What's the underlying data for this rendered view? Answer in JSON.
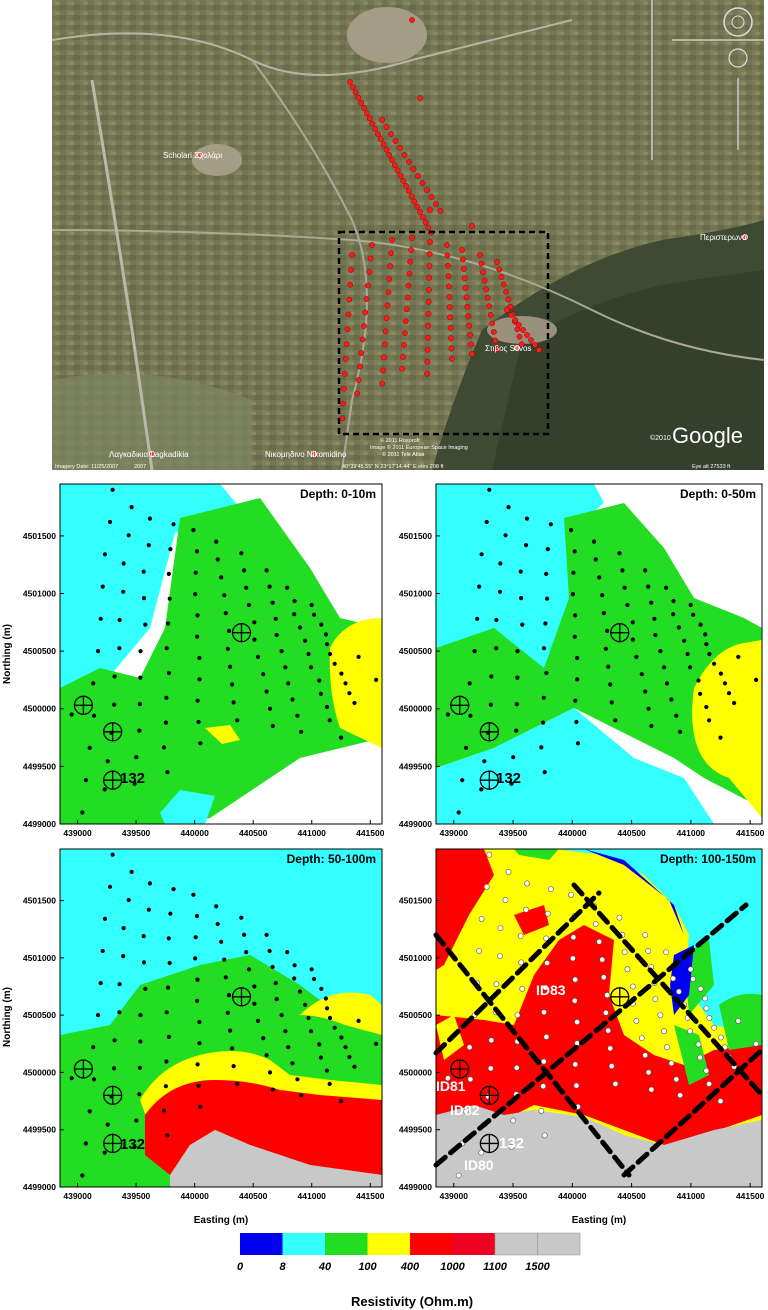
{
  "satellite": {
    "towns": [
      {
        "label": "Scholari",
        "label_gr": "Σχολάρι"
      },
      {
        "label": "Περιστερωνα",
        "label_gr": ""
      },
      {
        "label": "Στιβος",
        "label_gr": "Stivos"
      },
      {
        "label": "Λαγκαδικια",
        "label_gr": "Lagkadikia"
      },
      {
        "label": "Νικομηδινο",
        "label_gr": "Nikomidino"
      }
    ],
    "google_logo": "Google",
    "copyright_year": "©2010",
    "attribution_lines": [
      "© 2011 Rosoroft",
      "Image © 2011 European Space Imaging",
      "© 2011 Tele Atlas"
    ],
    "imagery_date": "Imagery Date: 11/25/2007",
    "year_tag": "2007",
    "coords": "40°39'45.55\" N   23°17'14.44\" E  elev  208 ft",
    "eye_alt": "Eye alt  27533 ft"
  },
  "map_panels": [
    {
      "title": "Depth: 0-10m"
    },
    {
      "title": "Depth: 0-50m"
    },
    {
      "title": "Depth: 50-100m"
    },
    {
      "title": "Depth: 100-150m"
    }
  ],
  "axes": {
    "xlabel": "Easting (m)",
    "ylabel": "Northing (m)",
    "x_ticks": [
      "439000",
      "439500",
      "440000",
      "440500",
      "441000",
      "441500"
    ],
    "y_ticks": [
      "4501500",
      "4501000",
      "4500500",
      "4500000",
      "4499500",
      "4499000"
    ]
  },
  "annotations": {
    "well_132": "132",
    "ids": [
      "ID83",
      "ID81",
      "ID82",
      "ID80"
    ]
  },
  "legend": {
    "title": "Resistivity (Ohm.m)",
    "ticks": [
      "0",
      "8",
      "40",
      "100",
      "400",
      "1000",
      "1100",
      "1500"
    ],
    "colors": [
      "#0000f0",
      "#33ffff",
      "#22dd22",
      "#ffff00",
      "#ff0000",
      "#ee0022",
      "#c8c8c8",
      "#c8c8c8"
    ]
  }
}
